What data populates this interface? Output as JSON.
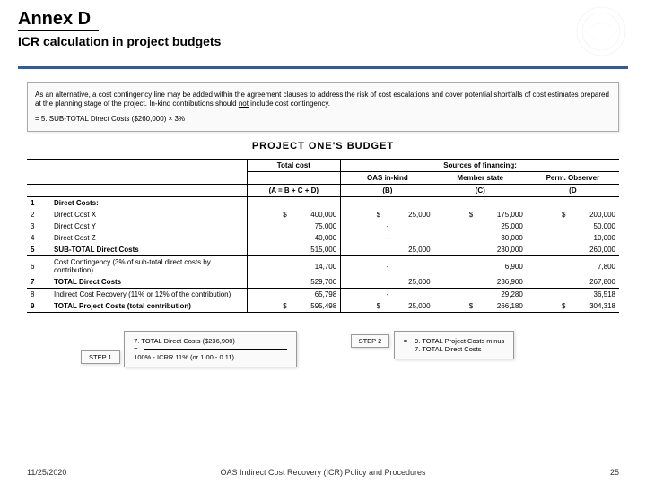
{
  "header": {
    "title": "Annex D",
    "subtitle": "ICR calculation in project budgets"
  },
  "note": {
    "line1": "As an alternative, a cost contingency line may be added within the agreement clauses to address the risk of cost escalations and cover potential shortfalls of cost estimates prepared at the planning stage of the project. In-kind contributions should ",
    "emphasis": "not",
    "line1b": " include cost contingency.",
    "formula": "= 5. SUB-TOTAL Direct Costs ($260,000) × 3%"
  },
  "budget": {
    "title": "PROJECT ONE'S BUDGET",
    "col_total": "Total cost",
    "col_sources": "Sources of financing:",
    "sub_oas": "OAS in-kind",
    "sub_member": "Member state",
    "sub_perm": "Perm. Observer",
    "sub_formula": "(A = B + C + D)",
    "sub_b": "(B)",
    "sub_c": "(C)",
    "sub_d": "(D",
    "rows": [
      {
        "n": "1",
        "label": "Direct Costs:",
        "bold": true,
        "a": "",
        "b": "",
        "c": "",
        "d": ""
      },
      {
        "n": "2",
        "label": "Direct Cost X",
        "a": "400,000",
        "b": "25,000",
        "c": "175,000",
        "d": "200,000",
        "dollar": true
      },
      {
        "n": "3",
        "label": "Direct Cost Y",
        "a": "75,000",
        "b": "-",
        "c": "25,000",
        "d": "50,000"
      },
      {
        "n": "4",
        "label": "Direct Cost Z",
        "a": "40,000",
        "b": "-",
        "c": "30,000",
        "d": "10,000"
      },
      {
        "n": "5",
        "label": "SUB-TOTAL Direct Costs",
        "bold": true,
        "a": "515,000",
        "b": "25,000",
        "c": "230,000",
        "d": "260,000",
        "sep": true
      },
      {
        "n": "6",
        "label": "Cost Contingency (3% of sub-total direct costs by contribution)",
        "a": "14,700",
        "b": "-",
        "c": "6,900",
        "d": "7,800"
      },
      {
        "n": "7",
        "label": "TOTAL Direct Costs",
        "bold": true,
        "a": "529,700",
        "b": "25,000",
        "c": "236,900",
        "d": "267,800",
        "sep": true
      },
      {
        "n": "8",
        "label": "Indirect Cost Recovery (11% or 12% of the contribution)",
        "a": "65,798",
        "b": "-",
        "c": "29,280",
        "d": "36,518"
      },
      {
        "n": "9",
        "label": "TOTAL Project Costs (total contribution)",
        "bold": true,
        "a": "595,498",
        "b": "25,000",
        "c": "266,180",
        "d": "304,318",
        "dollar": true,
        "sep": true
      }
    ]
  },
  "steps": {
    "step1_label": "STEP 1",
    "step1_num": "7. TOTAL Direct Costs ($236,900)",
    "step1_den": "100% - ICRR 11% (or 1.00 - 0.11)",
    "step2_label": "STEP 2",
    "step2_line1": "9. TOTAL Project Costs minus",
    "step2_line2": "7. TOTAL Direct Costs"
  },
  "footer": {
    "date": "11/25/2020",
    "center": "OAS Indirect Cost Recovery (ICR) Policy and Procedures",
    "page": "25"
  },
  "colors": {
    "blue": "#3b5998"
  }
}
